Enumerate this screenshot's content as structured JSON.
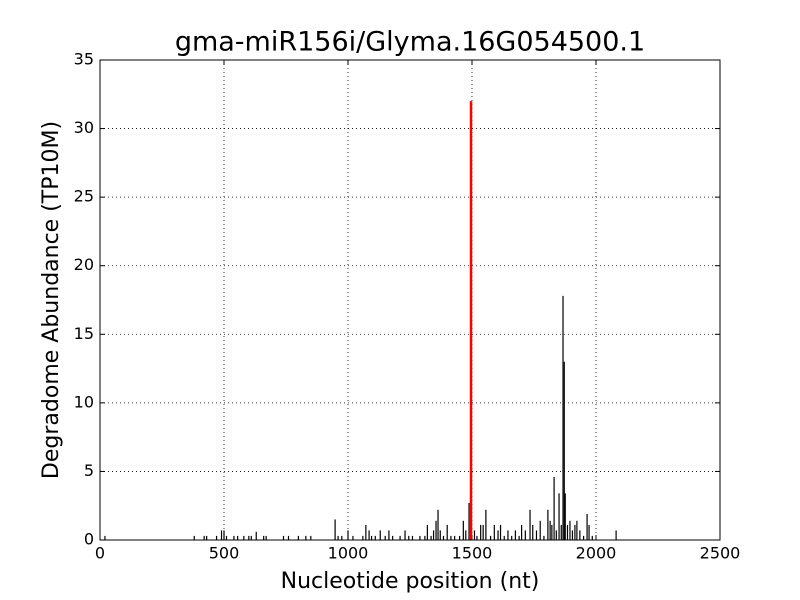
{
  "chart_data": {
    "type": "stem",
    "title": "gma-miR156i/Glyma.16G054500.1",
    "x_label": "Nucleotide position (nt)",
    "y_label": "Degradome Abundance (TP10M)",
    "xlim": [
      0,
      2500
    ],
    "xticks": [
      0,
      500,
      1000,
      1500,
      2000,
      2500
    ],
    "ylim": [
      0,
      35
    ],
    "yticks": [
      0,
      5,
      10,
      15,
      20,
      25,
      30,
      35
    ],
    "grid": true,
    "series": [
      {
        "color": "#000000",
        "x": [
          20,
          380,
          420,
          430,
          470,
          490,
          500,
          510,
          540,
          555,
          580,
          600,
          610,
          630,
          660,
          670,
          740,
          760,
          800,
          830,
          850,
          948,
          960,
          975,
          1000,
          1020,
          1060,
          1072,
          1085,
          1095,
          1110,
          1130,
          1150,
          1165,
          1180,
          1210,
          1230,
          1245,
          1260,
          1290,
          1310,
          1320,
          1335,
          1345,
          1355,
          1363,
          1372,
          1385,
          1400,
          1415,
          1430,
          1450,
          1465,
          1475,
          1488,
          1510,
          1520,
          1535,
          1545,
          1556,
          1575,
          1590,
          1605,
          1615,
          1630,
          1645,
          1660,
          1675,
          1690,
          1700,
          1715,
          1734,
          1745,
          1760,
          1775,
          1790,
          1806,
          1815,
          1822,
          1831,
          1840,
          1851,
          1860,
          1867,
          1872,
          1876,
          1885,
          1895,
          1905,
          1915,
          1923,
          1935,
          1950,
          1964,
          1972,
          1985,
          2081
        ],
        "values": [
          0.3,
          0.3,
          0.3,
          0.3,
          0.3,
          0.7,
          0.7,
          0.3,
          0.3,
          0.3,
          0.3,
          0.3,
          0.3,
          0.6,
          0.3,
          0.3,
          0.3,
          0.3,
          0.3,
          0.3,
          0.3,
          1.5,
          0.3,
          0.3,
          0.7,
          0.3,
          0.3,
          1.1,
          0.7,
          0.3,
          0.3,
          0.7,
          0.3,
          0.7,
          0.3,
          0.3,
          0.7,
          0.3,
          0.3,
          0.3,
          0.3,
          1.1,
          0.3,
          0.7,
          1.4,
          2.2,
          0.7,
          0.3,
          1.1,
          0.3,
          0.3,
          0.3,
          1.4,
          0.7,
          2.7,
          0.7,
          0.3,
          1.1,
          1.1,
          2.2,
          0.3,
          1.1,
          0.7,
          1.1,
          0.3,
          0.7,
          0.3,
          0.7,
          0.3,
          1.1,
          0.7,
          2.2,
          1.1,
          0.7,
          1.4,
          0.3,
          2.2,
          1.4,
          1.1,
          4.6,
          0.7,
          3.4,
          1.1,
          17.8,
          13.0,
          3.4,
          1.1,
          1.4,
          0.7,
          1.1,
          1.4,
          0.7,
          0.3,
          1.9,
          1.1,
          0.3,
          0.7
        ]
      },
      {
        "color": "#ff0000",
        "x": [
          1496
        ],
        "values": [
          32
        ]
      }
    ]
  }
}
